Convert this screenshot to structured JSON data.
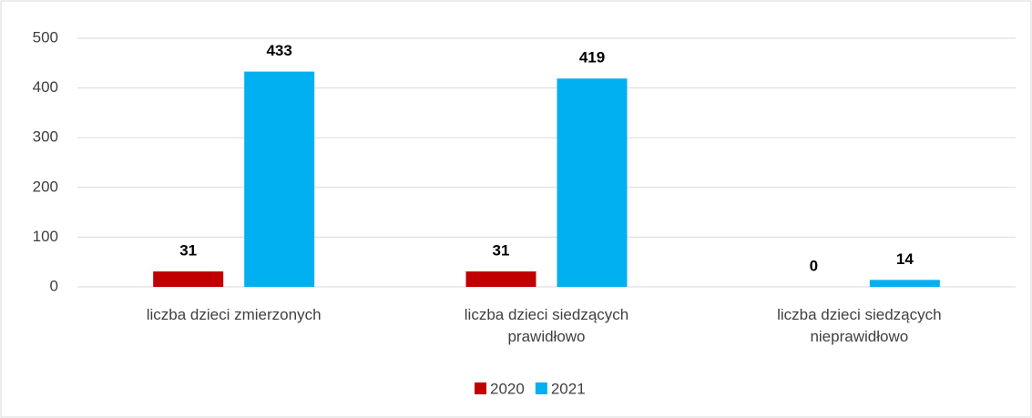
{
  "chart_data": {
    "type": "bar",
    "categories": [
      "liczba dzieci zmierzonych",
      "liczba dzieci siedzących prawidłowo",
      "liczba dzieci siedzących nieprawidłowo"
    ],
    "series": [
      {
        "name": "2020",
        "color": "#c00000",
        "values": [
          31,
          31,
          0
        ]
      },
      {
        "name": "2021",
        "color": "#00b0f0",
        "values": [
          433,
          419,
          14
        ]
      }
    ],
    "ylim": [
      0,
      500
    ],
    "yticks": [
      0,
      100,
      200,
      300,
      400,
      500
    ],
    "grid": true,
    "legend": "bottom"
  }
}
